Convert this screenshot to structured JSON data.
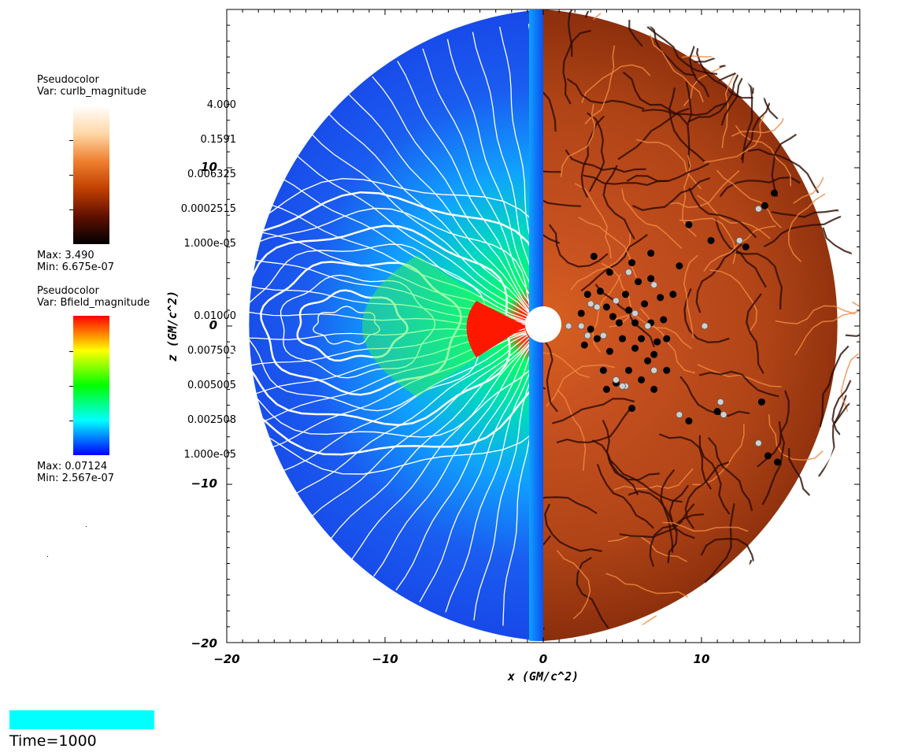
{
  "legend_curlb": {
    "plot_type": "Pseudocolor",
    "var_label": "Var: curlb_magnitude",
    "ticks": [
      "4.000",
      "0.1591",
      "0.006325",
      "0.0002515",
      "1.000e-05"
    ],
    "max_label": "Max:  3.490",
    "min_label": "Min:  6.675e-07",
    "colors": [
      "#ffffff",
      "#ffd8a8",
      "#f08030",
      "#c04000",
      "#601000",
      "#000000"
    ]
  },
  "legend_bfield": {
    "plot_type": "Pseudocolor",
    "var_label": "Var: Bfield_magnitude",
    "ticks": [
      "0.01000",
      "0.007503",
      "0.005005",
      "0.002508",
      "1.000e-05"
    ],
    "max_label": "Max:  0.07124",
    "min_label": "Min:  2.567e-07",
    "colors": [
      "#ff0000",
      "#ffff00",
      "#00ff00",
      "#00ffff",
      "#0000ff"
    ]
  },
  "chart_data": {
    "type": "heatmap",
    "xlabel": "x (GM/c^2)",
    "ylabel": "z (GM/c^2)",
    "xlim": [
      -20,
      20
    ],
    "ylim": [
      -20,
      20
    ],
    "x_ticks": [
      "−20",
      "−10",
      "0",
      "10"
    ],
    "y_ticks": [
      "10",
      "0",
      "−10",
      "−20"
    ],
    "x_tick_values": [
      -20,
      -10,
      0,
      10
    ],
    "y_tick_values": [
      10,
      0,
      -10,
      -20
    ],
    "outer_radius": 20,
    "inner_radius": 1.15,
    "left_half_field": "Bfield_magnitude",
    "right_half_field": "curlb_magnitude",
    "left_colors": {
      "background": "#1a55f0",
      "mid": "#00c8ff",
      "high": "#00ff40",
      "peak": "#ff1000"
    },
    "right_colors": {
      "background": "#a83a10",
      "dark": "#200800",
      "bright": "#e07030"
    },
    "field_line_color": "#ffffff",
    "particles_black": [
      [
        3.2,
        4.4
      ],
      [
        3.6,
        2.2
      ],
      [
        4.0,
        1.2
      ],
      [
        4.4,
        0.6
      ],
      [
        5.2,
        2.0
      ],
      [
        5.6,
        4.0
      ],
      [
        6.0,
        2.8
      ],
      [
        6.4,
        1.4
      ],
      [
        6.8,
        3.0
      ],
      [
        7.4,
        1.8
      ],
      [
        7.6,
        0.4
      ],
      [
        7.2,
        -1.0
      ],
      [
        6.6,
        -2.2
      ],
      [
        5.8,
        -1.4
      ],
      [
        5.0,
        -0.8
      ],
      [
        4.2,
        -1.6
      ],
      [
        3.8,
        -2.8
      ],
      [
        4.6,
        -3.6
      ],
      [
        5.4,
        -2.8
      ],
      [
        6.2,
        -3.4
      ],
      [
        7.0,
        -4.0
      ],
      [
        7.8,
        -2.8
      ],
      [
        3.0,
        -0.2
      ],
      [
        2.4,
        0.8
      ],
      [
        2.6,
        -1.2
      ],
      [
        3.4,
        -0.8
      ],
      [
        4.8,
        0.2
      ],
      [
        5.8,
        0.2
      ],
      [
        6.8,
        0.2
      ],
      [
        7.8,
        -0.8
      ],
      [
        8.6,
        3.8
      ],
      [
        9.2,
        6.4
      ],
      [
        10.6,
        5.4
      ],
      [
        12.8,
        5.0
      ],
      [
        14.0,
        7.6
      ],
      [
        14.6,
        8.4
      ],
      [
        13.8,
        -4.8
      ],
      [
        14.2,
        -8.2
      ],
      [
        14.8,
        -8.6
      ],
      [
        9.2,
        -6.0
      ],
      [
        11.0,
        -5.4
      ],
      [
        5.6,
        -5.2
      ],
      [
        4.0,
        -4.0
      ],
      [
        6.8,
        4.6
      ],
      [
        4.2,
        3.4
      ],
      [
        5.4,
        1.0
      ],
      [
        6.2,
        -0.8
      ],
      [
        7.0,
        -1.8
      ],
      [
        8.2,
        2.0
      ],
      [
        2.8,
        2.0
      ]
    ],
    "particles_white": [
      [
        1.6,
        0.0
      ],
      [
        2.4,
        0.0
      ],
      [
        2.8,
        -0.6
      ],
      [
        3.4,
        1.2
      ],
      [
        3.0,
        1.4
      ],
      [
        4.6,
        1.6
      ],
      [
        5.8,
        0.8
      ],
      [
        6.6,
        0.0
      ],
      [
        7.0,
        -2.8
      ],
      [
        5.2,
        -3.8
      ],
      [
        4.6,
        -3.4
      ],
      [
        5.0,
        -3.8
      ],
      [
        7.0,
        2.6
      ],
      [
        5.4,
        3.4
      ],
      [
        8.6,
        -5.6
      ],
      [
        11.2,
        -4.8
      ],
      [
        11.4,
        -5.6
      ],
      [
        12.4,
        5.4
      ],
      [
        10.2,
        0.0
      ],
      [
        13.6,
        -7.4
      ],
      [
        13.6,
        7.4
      ],
      [
        3.8,
        -0.6
      ]
    ]
  },
  "progress": {
    "fraction": 0.4
  },
  "time_label": "Time=1000"
}
